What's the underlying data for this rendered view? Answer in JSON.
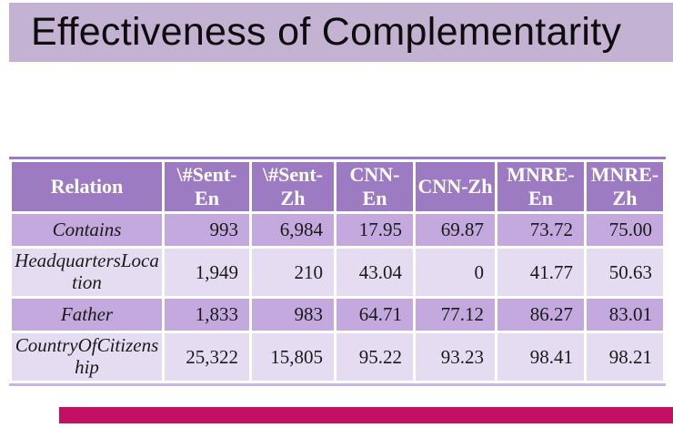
{
  "slide": {
    "title": "Effectiveness of Complementarity"
  },
  "colors": {
    "title_bar_bg": "#c3b2d2",
    "header_bg": "#9d7bc2",
    "header_text": "#ffffff",
    "row_dark_bg": "#c3a9de",
    "row_light_bg": "#e6dcf2",
    "body_text": "#1a1a1a",
    "footer_bar": "#c50f63"
  },
  "table": {
    "columns": [
      "Relation",
      "\\#Sent-En",
      "\\#Sent-Zh",
      "CNN-En",
      "CNN-Zh",
      "MNRE-En",
      "MNRE-Zh"
    ],
    "rows": [
      {
        "relation": "Contains",
        "cells": [
          "993",
          "6,984",
          "17.95",
          "69.87",
          "73.72",
          "75.00"
        ]
      },
      {
        "relation": "HeadquartersLocation",
        "cells": [
          "1,949",
          "210",
          "43.04",
          "0",
          "41.77",
          "50.63"
        ]
      },
      {
        "relation": "Father",
        "cells": [
          "1,833",
          "983",
          "64.71",
          "77.12",
          "86.27",
          "83.01"
        ]
      },
      {
        "relation": "CountryOfCitizenship",
        "cells": [
          "25,322",
          "15,805",
          "95.22",
          "93.23",
          "98.41",
          "98.21"
        ]
      }
    ]
  }
}
